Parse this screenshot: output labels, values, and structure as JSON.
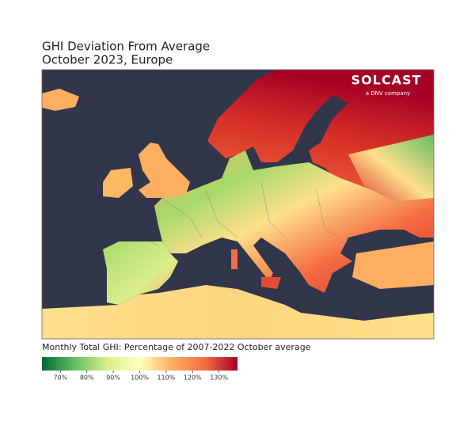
{
  "title_lines": [
    "GHI Deviation From Average",
    "October 2023, Europe"
  ],
  "logo": {
    "name": "SOLCAST",
    "tagline": "a DNV company"
  },
  "colorbar": {
    "label": "Monthly Total GHI: Percentage of 2007-2022 October average",
    "lim": [
      63,
      137
    ],
    "colors": [
      "#006837",
      "#66bd63",
      "#d9ef8b",
      "#ffffbf",
      "#fdae61",
      "#f46d43",
      "#a50026"
    ],
    "ticks": [
      {
        "value": 70,
        "label": "70%"
      },
      {
        "value": 80,
        "label": "80%"
      },
      {
        "value": 90,
        "label": "90%"
      },
      {
        "value": 100,
        "label": "100%"
      },
      {
        "value": 110,
        "label": "110%"
      },
      {
        "value": 120,
        "label": "120%"
      },
      {
        "value": 130,
        "label": "130%"
      }
    ]
  }
}
